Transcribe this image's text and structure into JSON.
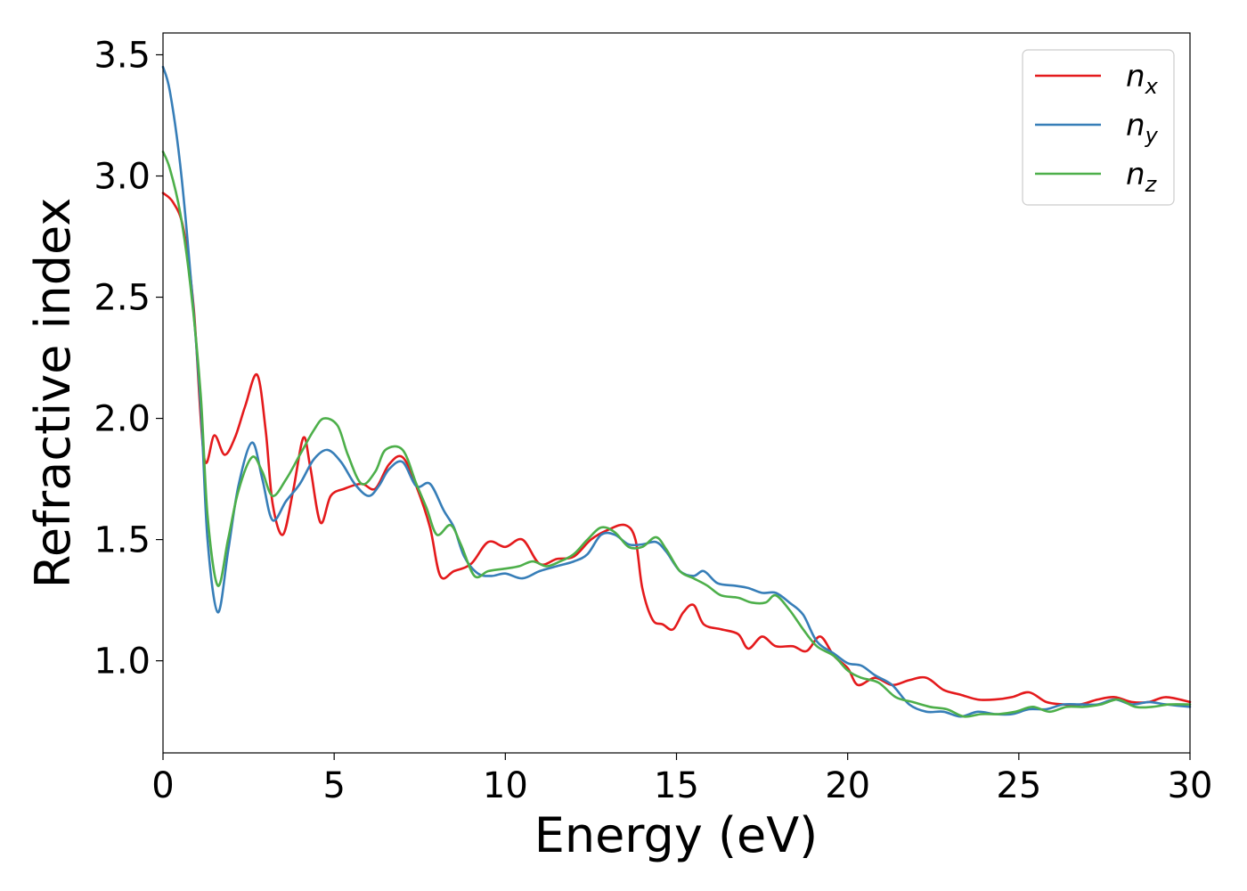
{
  "chart_data": {
    "type": "line",
    "xlabel": "Energy (eV)",
    "ylabel": "Refractive index",
    "xlim": [
      0,
      30
    ],
    "ylim": [
      0.62,
      3.59
    ],
    "xticks": [
      0,
      5,
      10,
      15,
      20,
      25,
      30
    ],
    "xtick_labels": [
      "0",
      "5",
      "10",
      "15",
      "20",
      "25",
      "30"
    ],
    "yticks": [
      1.0,
      1.5,
      2.0,
      2.5,
      3.0,
      3.5
    ],
    "ytick_labels": [
      "1.0",
      "1.5",
      "2.0",
      "2.5",
      "3.0",
      "3.5"
    ],
    "grid": false,
    "legend_position": "top-right",
    "series": [
      {
        "name": "n_x",
        "label_base": "n",
        "label_sub": "x",
        "color": "#e41a1c",
        "points": [
          [
            0,
            2.93
          ],
          [
            0.3,
            2.89
          ],
          [
            0.6,
            2.78
          ],
          [
            0.9,
            2.45
          ],
          [
            1.2,
            1.84
          ],
          [
            1.5,
            1.93
          ],
          [
            1.8,
            1.85
          ],
          [
            2.1,
            1.92
          ],
          [
            2.4,
            2.05
          ],
          [
            2.75,
            2.18
          ],
          [
            3.0,
            1.95
          ],
          [
            3.2,
            1.65
          ],
          [
            3.5,
            1.52
          ],
          [
            3.8,
            1.7
          ],
          [
            4.1,
            1.92
          ],
          [
            4.3,
            1.8
          ],
          [
            4.6,
            1.57
          ],
          [
            4.9,
            1.68
          ],
          [
            5.3,
            1.71
          ],
          [
            5.8,
            1.73
          ],
          [
            6.2,
            1.71
          ],
          [
            6.6,
            1.81
          ],
          [
            7.0,
            1.84
          ],
          [
            7.4,
            1.72
          ],
          [
            7.8,
            1.55
          ],
          [
            8.1,
            1.35
          ],
          [
            8.5,
            1.37
          ],
          [
            9.0,
            1.4
          ],
          [
            9.5,
            1.49
          ],
          [
            10.0,
            1.47
          ],
          [
            10.5,
            1.5
          ],
          [
            11.0,
            1.4
          ],
          [
            11.5,
            1.42
          ],
          [
            12.0,
            1.43
          ],
          [
            12.5,
            1.5
          ],
          [
            13.0,
            1.54
          ],
          [
            13.5,
            1.56
          ],
          [
            13.8,
            1.5
          ],
          [
            14.0,
            1.3
          ],
          [
            14.3,
            1.17
          ],
          [
            14.6,
            1.15
          ],
          [
            14.9,
            1.13
          ],
          [
            15.2,
            1.2
          ],
          [
            15.5,
            1.23
          ],
          [
            15.8,
            1.15
          ],
          [
            16.3,
            1.13
          ],
          [
            16.8,
            1.11
          ],
          [
            17.1,
            1.05
          ],
          [
            17.5,
            1.1
          ],
          [
            17.9,
            1.06
          ],
          [
            18.4,
            1.06
          ],
          [
            18.8,
            1.04
          ],
          [
            19.2,
            1.1
          ],
          [
            19.6,
            1.02
          ],
          [
            20.0,
            0.97
          ],
          [
            20.3,
            0.9
          ],
          [
            20.8,
            0.93
          ],
          [
            21.3,
            0.9
          ],
          [
            21.8,
            0.92
          ],
          [
            22.3,
            0.93
          ],
          [
            22.8,
            0.88
          ],
          [
            23.3,
            0.86
          ],
          [
            23.8,
            0.84
          ],
          [
            24.3,
            0.84
          ],
          [
            24.8,
            0.85
          ],
          [
            25.3,
            0.87
          ],
          [
            25.8,
            0.83
          ],
          [
            26.3,
            0.82
          ],
          [
            26.8,
            0.82
          ],
          [
            27.3,
            0.84
          ],
          [
            27.8,
            0.85
          ],
          [
            28.3,
            0.83
          ],
          [
            28.8,
            0.83
          ],
          [
            29.3,
            0.85
          ],
          [
            30.0,
            0.83
          ]
        ]
      },
      {
        "name": "n_y",
        "label_base": "n",
        "label_sub": "y",
        "color": "#377eb8",
        "points": [
          [
            0,
            3.45
          ],
          [
            0.2,
            3.35
          ],
          [
            0.5,
            3.05
          ],
          [
            0.8,
            2.6
          ],
          [
            1.1,
            2.05
          ],
          [
            1.3,
            1.5
          ],
          [
            1.6,
            1.2
          ],
          [
            1.9,
            1.45
          ],
          [
            2.2,
            1.72
          ],
          [
            2.6,
            1.9
          ],
          [
            2.9,
            1.75
          ],
          [
            3.2,
            1.58
          ],
          [
            3.6,
            1.66
          ],
          [
            4.0,
            1.73
          ],
          [
            4.4,
            1.83
          ],
          [
            4.8,
            1.87
          ],
          [
            5.2,
            1.82
          ],
          [
            5.6,
            1.73
          ],
          [
            6.0,
            1.68
          ],
          [
            6.3,
            1.72
          ],
          [
            6.6,
            1.79
          ],
          [
            7.0,
            1.82
          ],
          [
            7.4,
            1.72
          ],
          [
            7.8,
            1.73
          ],
          [
            8.2,
            1.62
          ],
          [
            8.5,
            1.55
          ],
          [
            8.8,
            1.43
          ],
          [
            9.2,
            1.36
          ],
          [
            9.6,
            1.35
          ],
          [
            10.0,
            1.36
          ],
          [
            10.5,
            1.34
          ],
          [
            11.0,
            1.37
          ],
          [
            11.5,
            1.39
          ],
          [
            12.0,
            1.41
          ],
          [
            12.4,
            1.44
          ],
          [
            12.8,
            1.52
          ],
          [
            13.2,
            1.52
          ],
          [
            13.6,
            1.48
          ],
          [
            14.0,
            1.48
          ],
          [
            14.4,
            1.49
          ],
          [
            14.7,
            1.45
          ],
          [
            15.1,
            1.37
          ],
          [
            15.5,
            1.35
          ],
          [
            15.8,
            1.37
          ],
          [
            16.2,
            1.32
          ],
          [
            16.7,
            1.31
          ],
          [
            17.1,
            1.3
          ],
          [
            17.5,
            1.28
          ],
          [
            17.9,
            1.28
          ],
          [
            18.3,
            1.24
          ],
          [
            18.7,
            1.19
          ],
          [
            19.1,
            1.08
          ],
          [
            19.6,
            1.03
          ],
          [
            20.0,
            0.99
          ],
          [
            20.4,
            0.98
          ],
          [
            20.8,
            0.94
          ],
          [
            21.3,
            0.9
          ],
          [
            21.8,
            0.82
          ],
          [
            22.3,
            0.79
          ],
          [
            22.8,
            0.79
          ],
          [
            23.3,
            0.77
          ],
          [
            23.8,
            0.79
          ],
          [
            24.3,
            0.78
          ],
          [
            24.8,
            0.78
          ],
          [
            25.3,
            0.8
          ],
          [
            25.8,
            0.8
          ],
          [
            26.3,
            0.82
          ],
          [
            26.8,
            0.82
          ],
          [
            27.3,
            0.82
          ],
          [
            27.8,
            0.84
          ],
          [
            28.3,
            0.82
          ],
          [
            28.8,
            0.83
          ],
          [
            29.3,
            0.82
          ],
          [
            30.0,
            0.81
          ]
        ]
      },
      {
        "name": "n_z",
        "label_base": "n",
        "label_sub": "z",
        "color": "#4daf4a",
        "points": [
          [
            0,
            3.1
          ],
          [
            0.2,
            3.03
          ],
          [
            0.5,
            2.85
          ],
          [
            0.8,
            2.55
          ],
          [
            1.1,
            2.1
          ],
          [
            1.3,
            1.6
          ],
          [
            1.6,
            1.31
          ],
          [
            1.9,
            1.5
          ],
          [
            2.2,
            1.7
          ],
          [
            2.6,
            1.84
          ],
          [
            2.9,
            1.78
          ],
          [
            3.2,
            1.68
          ],
          [
            3.6,
            1.75
          ],
          [
            4.0,
            1.85
          ],
          [
            4.4,
            1.95
          ],
          [
            4.7,
            2.0
          ],
          [
            5.1,
            1.97
          ],
          [
            5.4,
            1.85
          ],
          [
            5.8,
            1.73
          ],
          [
            6.2,
            1.78
          ],
          [
            6.5,
            1.87
          ],
          [
            7.0,
            1.87
          ],
          [
            7.4,
            1.73
          ],
          [
            7.7,
            1.63
          ],
          [
            8.0,
            1.52
          ],
          [
            8.4,
            1.56
          ],
          [
            8.7,
            1.48
          ],
          [
            9.1,
            1.35
          ],
          [
            9.5,
            1.37
          ],
          [
            10.0,
            1.38
          ],
          [
            10.4,
            1.39
          ],
          [
            10.8,
            1.41
          ],
          [
            11.2,
            1.39
          ],
          [
            11.6,
            1.41
          ],
          [
            12.0,
            1.44
          ],
          [
            12.4,
            1.5
          ],
          [
            12.8,
            1.55
          ],
          [
            13.2,
            1.53
          ],
          [
            13.6,
            1.47
          ],
          [
            14.0,
            1.47
          ],
          [
            14.4,
            1.51
          ],
          [
            14.7,
            1.46
          ],
          [
            15.1,
            1.37
          ],
          [
            15.5,
            1.34
          ],
          [
            15.9,
            1.31
          ],
          [
            16.3,
            1.27
          ],
          [
            16.8,
            1.26
          ],
          [
            17.2,
            1.24
          ],
          [
            17.6,
            1.24
          ],
          [
            17.9,
            1.27
          ],
          [
            18.3,
            1.21
          ],
          [
            18.7,
            1.13
          ],
          [
            19.1,
            1.06
          ],
          [
            19.6,
            1.02
          ],
          [
            20.0,
            0.96
          ],
          [
            20.4,
            0.93
          ],
          [
            20.9,
            0.91
          ],
          [
            21.4,
            0.85
          ],
          [
            21.9,
            0.83
          ],
          [
            22.4,
            0.81
          ],
          [
            22.9,
            0.8
          ],
          [
            23.4,
            0.77
          ],
          [
            23.9,
            0.78
          ],
          [
            24.4,
            0.78
          ],
          [
            24.9,
            0.79
          ],
          [
            25.4,
            0.81
          ],
          [
            25.9,
            0.79
          ],
          [
            26.4,
            0.81
          ],
          [
            26.9,
            0.81
          ],
          [
            27.4,
            0.82
          ],
          [
            27.9,
            0.84
          ],
          [
            28.4,
            0.81
          ],
          [
            28.9,
            0.81
          ],
          [
            29.4,
            0.82
          ],
          [
            30.0,
            0.82
          ]
        ]
      }
    ]
  }
}
